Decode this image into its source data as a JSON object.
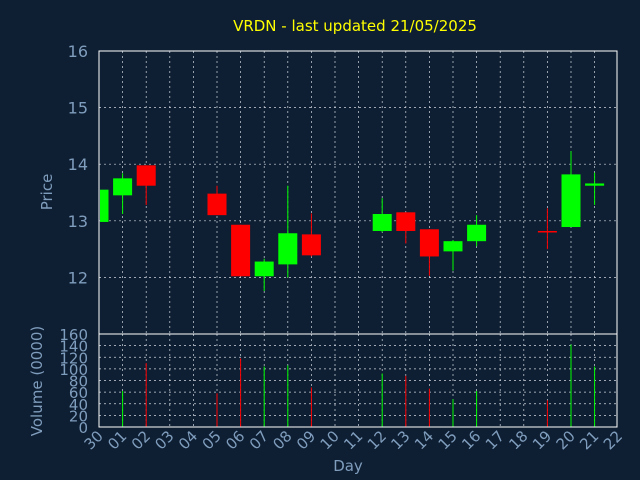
{
  "colors": {
    "background": "#0f1f33",
    "plot": "#0f1f33",
    "frame": "#ffffff",
    "grid": "#cfd6df",
    "title": "#ffff00",
    "axis_text": "#7f9dbd",
    "up": "#00ff00",
    "down": "#ff0000",
    "neutral": "#ff0000"
  },
  "chart_data": [
    {
      "type": "candlestick",
      "title": "VRDN - last updated 21/05/2025",
      "ylabel": "Price",
      "ylim": [
        11,
        16
      ],
      "yticks": [
        12,
        13,
        14,
        15,
        16
      ],
      "grid": true,
      "categories": [
        "30",
        "01",
        "02",
        "03",
        "04",
        "05",
        "06",
        "07",
        "08",
        "09",
        "10",
        "11",
        "12",
        "13",
        "14",
        "15",
        "16",
        "17",
        "18",
        "19",
        "20",
        "21",
        "22"
      ],
      "candles": [
        {
          "x": "30",
          "open": 12.98,
          "high": 13.55,
          "low": 12.98,
          "close": 13.55
        },
        {
          "x": "01",
          "open": 13.45,
          "high": 13.84,
          "low": 13.12,
          "close": 13.75
        },
        {
          "x": "02",
          "open": 13.98,
          "high": 13.98,
          "low": 13.28,
          "close": 13.62
        },
        {
          "x": "05",
          "open": 13.48,
          "high": 13.62,
          "low": 13.1,
          "close": 13.1
        },
        {
          "x": "06",
          "open": 12.93,
          "high": 12.93,
          "low": 12.02,
          "close": 12.02
        },
        {
          "x": "07",
          "open": 12.02,
          "high": 12.33,
          "low": 11.76,
          "close": 12.28
        },
        {
          "x": "08",
          "open": 12.23,
          "high": 13.62,
          "low": 12.0,
          "close": 12.78
        },
        {
          "x": "09",
          "open": 12.76,
          "high": 13.13,
          "low": 12.37,
          "close": 12.39
        },
        {
          "x": "12",
          "open": 12.82,
          "high": 13.4,
          "low": 12.8,
          "close": 13.12
        },
        {
          "x": "13",
          "open": 13.15,
          "high": 13.15,
          "low": 12.6,
          "close": 12.82
        },
        {
          "x": "14",
          "open": 12.85,
          "high": 12.85,
          "low": 12.03,
          "close": 12.37
        },
        {
          "x": "15",
          "open": 12.46,
          "high": 12.66,
          "low": 12.12,
          "close": 12.64
        },
        {
          "x": "16",
          "open": 12.64,
          "high": 13.1,
          "low": 12.55,
          "close": 12.93
        },
        {
          "x": "19",
          "open": 12.82,
          "high": 13.22,
          "low": 12.5,
          "close": 12.82
        },
        {
          "x": "20",
          "open": 12.89,
          "high": 14.23,
          "low": 12.89,
          "close": 13.82
        },
        {
          "x": "21",
          "open": 13.62,
          "high": 13.85,
          "low": 13.28,
          "close": 13.66
        }
      ]
    },
    {
      "type": "bar",
      "ylabel": "Volume (0000)",
      "xlabel": "Day",
      "ylim": [
        0,
        160
      ],
      "yticks": [
        0,
        20,
        40,
        60,
        80,
        100,
        120,
        140,
        160
      ],
      "grid": true,
      "categories": [
        "30",
        "01",
        "02",
        "03",
        "04",
        "05",
        "06",
        "07",
        "08",
        "09",
        "10",
        "11",
        "12",
        "13",
        "14",
        "15",
        "16",
        "17",
        "18",
        "19",
        "20",
        "21",
        "22"
      ],
      "bars": [
        {
          "x": "30",
          "value": 0,
          "dir": "up"
        },
        {
          "x": "01",
          "value": 62,
          "dir": "up"
        },
        {
          "x": "02",
          "value": 110,
          "dir": "down"
        },
        {
          "x": "05",
          "value": 58,
          "dir": "down"
        },
        {
          "x": "06",
          "value": 118,
          "dir": "down"
        },
        {
          "x": "07",
          "value": 104,
          "dir": "up"
        },
        {
          "x": "08",
          "value": 106,
          "dir": "up"
        },
        {
          "x": "09",
          "value": 68,
          "dir": "down"
        },
        {
          "x": "12",
          "value": 92,
          "dir": "up"
        },
        {
          "x": "13",
          "value": 88,
          "dir": "down"
        },
        {
          "x": "14",
          "value": 66,
          "dir": "down"
        },
        {
          "x": "15",
          "value": 48,
          "dir": "up"
        },
        {
          "x": "16",
          "value": 62,
          "dir": "up"
        },
        {
          "x": "19",
          "value": 46,
          "dir": "down"
        },
        {
          "x": "20",
          "value": 142,
          "dir": "up"
        },
        {
          "x": "21",
          "value": 104,
          "dir": "up"
        }
      ]
    }
  ]
}
